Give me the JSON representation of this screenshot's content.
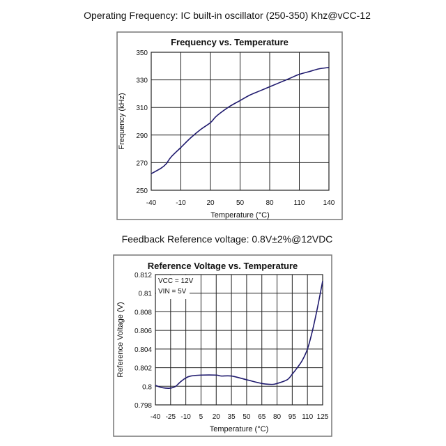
{
  "captions": {
    "top": "Operating Frequency: IC built-in oscillator (250-350) Khz@vCC-12",
    "bottom": "Feedback Reference voltage: 0.8V±2%@12VDC"
  },
  "line_color": "#1f1a6e",
  "chart_data": [
    {
      "type": "line",
      "title": "Frequency vs. Temperature",
      "xlabel": "Temperature (°C)",
      "ylabel": "Frequency (kHz)",
      "xlim": [
        -40,
        140
      ],
      "ylim": [
        250,
        350
      ],
      "xticks": [
        -40,
        -10,
        20,
        50,
        80,
        110,
        140
      ],
      "yticks": [
        250,
        270,
        290,
        310,
        330,
        350
      ],
      "x": [
        -40,
        -30,
        -25,
        -20,
        -10,
        0,
        10,
        20,
        25,
        30,
        40,
        50,
        60,
        70,
        80,
        90,
        100,
        110,
        120,
        130,
        140
      ],
      "y": [
        262,
        266,
        269,
        274,
        281,
        288,
        294,
        299,
        303,
        306,
        311,
        315,
        319,
        322,
        325,
        328,
        331,
        334,
        336,
        338,
        339
      ],
      "grid": true
    },
    {
      "type": "line",
      "title": "Reference Voltage vs. Temperature",
      "xlabel": "Temperature (°C)",
      "ylabel": "Reference Voltage (V)",
      "xlim": [
        -40,
        125
      ],
      "ylim": [
        0.798,
        0.812
      ],
      "xticks": [
        -40,
        -25,
        -10,
        5,
        20,
        35,
        50,
        65,
        80,
        95,
        110,
        125
      ],
      "yticks": [
        0.798,
        0.8,
        0.802,
        0.804,
        0.806,
        0.808,
        0.81,
        0.812
      ],
      "ytick_labels": [
        "0.798",
        "0.8",
        "0.802",
        "0.804",
        "0.806",
        "0.808",
        "0.81",
        "0.812"
      ],
      "x": [
        -40,
        -35,
        -30,
        -25,
        -20,
        -15,
        -10,
        -5,
        5,
        20,
        25,
        35,
        50,
        65,
        75,
        80,
        90,
        95,
        100,
        105,
        110,
        115,
        120,
        125
      ],
      "y": [
        0.8001,
        0.7999,
        0.7998,
        0.7998,
        0.8,
        0.8005,
        0.8009,
        0.8011,
        0.8012,
        0.8012,
        0.8011,
        0.8011,
        0.8007,
        0.8003,
        0.8002,
        0.8003,
        0.8007,
        0.8013,
        0.802,
        0.8028,
        0.804,
        0.806,
        0.8085,
        0.8113
      ],
      "annotations": [
        "VCC = 12V",
        "VIN = 5V"
      ],
      "grid": true
    }
  ]
}
